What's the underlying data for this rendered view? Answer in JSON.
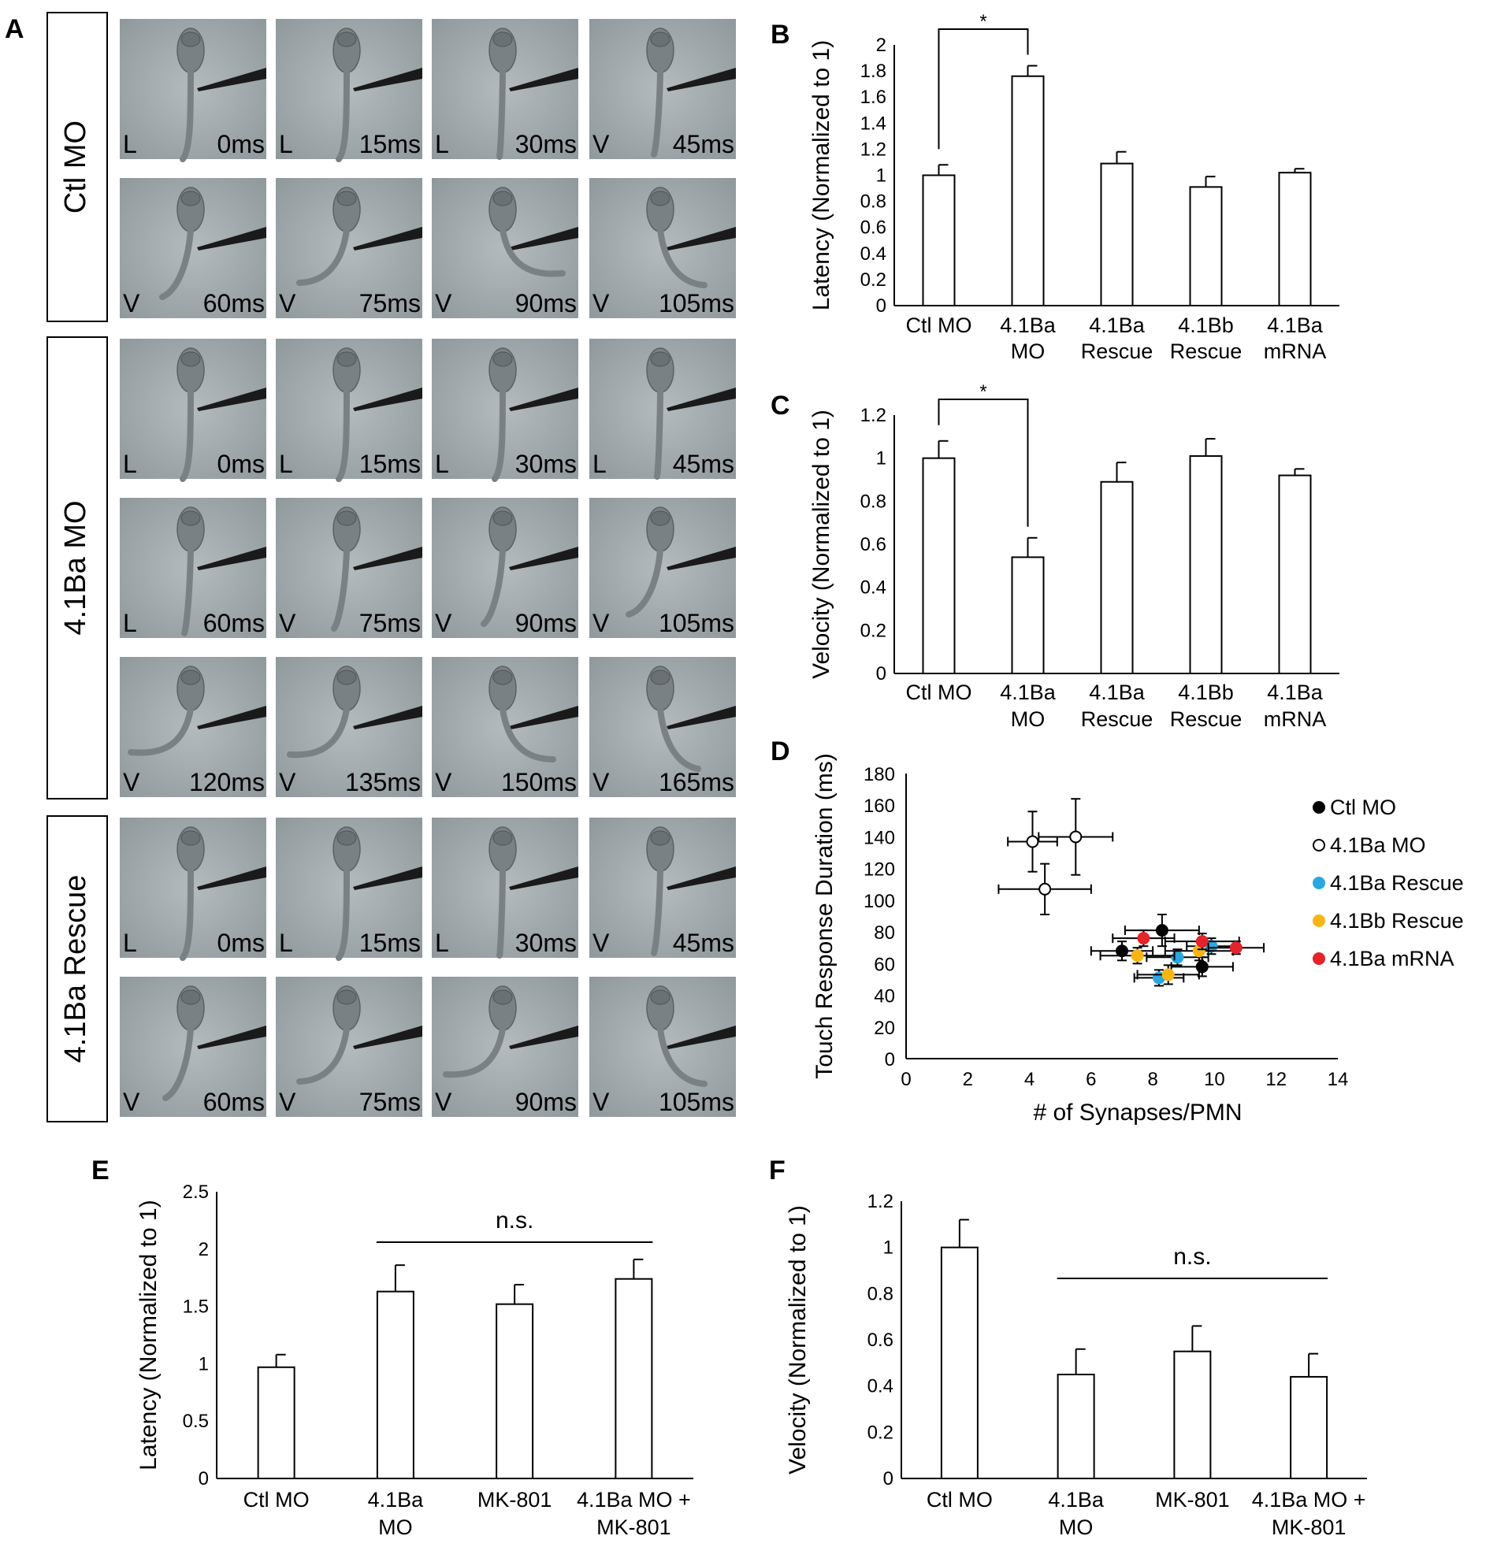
{
  "panel_a": {
    "label": "A",
    "groups": [
      {
        "label": "Ctl MO",
        "frames": [
          {
            "side": "L",
            "time": "0ms",
            "tail": 0.0
          },
          {
            "side": "L",
            "time": "15ms",
            "tail": 0.0
          },
          {
            "side": "L",
            "time": "30ms",
            "tail": 0.05
          },
          {
            "side": "V",
            "time": "45ms",
            "tail": 0.1
          },
          {
            "side": "V",
            "time": "60ms",
            "tail": 0.45
          },
          {
            "side": "V",
            "time": "75ms",
            "tail": 0.75
          },
          {
            "side": "V",
            "time": "90ms",
            "tail": -0.95
          },
          {
            "side": "V",
            "time": "105ms",
            "tail": -0.7
          }
        ]
      },
      {
        "label": "4.1Ba MO",
        "frames": [
          {
            "side": "L",
            "time": "0ms",
            "tail": 0.0
          },
          {
            "side": "L",
            "time": "15ms",
            "tail": 0.0
          },
          {
            "side": "L",
            "time": "30ms",
            "tail": 0.0
          },
          {
            "side": "L",
            "time": "45ms",
            "tail": 0.05
          },
          {
            "side": "L",
            "time": "60ms",
            "tail": 0.1
          },
          {
            "side": "V",
            "time": "75ms",
            "tail": 0.2
          },
          {
            "side": "V",
            "time": "90ms",
            "tail": 0.3
          },
          {
            "side": "V",
            "time": "105ms",
            "tail": 0.5
          },
          {
            "side": "V",
            "time": "120ms",
            "tail": 0.95
          },
          {
            "side": "V",
            "time": "135ms",
            "tail": 0.9
          },
          {
            "side": "V",
            "time": "150ms",
            "tail": -0.8
          },
          {
            "side": "V",
            "time": "165ms",
            "tail": -0.6
          }
        ]
      },
      {
        "label": "4.1Ba Rescue",
        "frames": [
          {
            "side": "L",
            "time": "0ms",
            "tail": 0.0
          },
          {
            "side": "L",
            "time": "15ms",
            "tail": 0.0
          },
          {
            "side": "L",
            "time": "30ms",
            "tail": 0.05
          },
          {
            "side": "V",
            "time": "45ms",
            "tail": 0.1
          },
          {
            "side": "V",
            "time": "60ms",
            "tail": 0.4
          },
          {
            "side": "V",
            "time": "75ms",
            "tail": 0.75
          },
          {
            "side": "V",
            "time": "90ms",
            "tail": 0.9
          },
          {
            "side": "V",
            "time": "105ms",
            "tail": -0.7
          }
        ]
      }
    ]
  },
  "colors": {
    "frame_bg": "#9aa3a6",
    "larva": "#7a8184",
    "probe": "#1a1a1a",
    "ctl_mo": "#000000",
    "ba_mo": "#ffffff",
    "ba_rescue": "#2aa7df",
    "bb_rescue": "#f7b515",
    "ba_mrna": "#e4232a"
  },
  "chart_data": [
    {
      "panel": "B",
      "type": "bar",
      "categories": [
        [
          "Ctl MO"
        ],
        [
          "4.1Ba",
          "MO"
        ],
        [
          "4.1Ba",
          "Rescue"
        ],
        [
          "4.1Bb",
          "Rescue"
        ],
        [
          "4.1Ba",
          "mRNA"
        ]
      ],
      "values": [
        1.0,
        1.76,
        1.09,
        0.91,
        1.02
      ],
      "errors": [
        0.08,
        0.08,
        0.09,
        0.08,
        0.03
      ],
      "ylabel": "Latency (Normalized to 1)",
      "ylim": [
        0,
        2
      ],
      "yticks": [
        "0",
        "0.2",
        "0.4",
        "0.6",
        "0.8",
        "1",
        "1.2",
        "1.4",
        "1.6",
        "1.8",
        "2"
      ],
      "annotation": {
        "text": "*",
        "from": 0,
        "to": 1
      }
    },
    {
      "panel": "C",
      "type": "bar",
      "categories": [
        [
          "Ctl MO"
        ],
        [
          "4.1Ba",
          "MO"
        ],
        [
          "4.1Ba",
          "Rescue"
        ],
        [
          "4.1Bb",
          "Rescue"
        ],
        [
          "4.1Ba",
          "mRNA"
        ]
      ],
      "values": [
        1.0,
        0.54,
        0.89,
        1.01,
        0.92
      ],
      "errors": [
        0.08,
        0.09,
        0.09,
        0.08,
        0.03
      ],
      "ylabel": "Velocity (Normalized to 1)",
      "ylim": [
        0,
        1.2
      ],
      "yticks": [
        "0",
        "0.2",
        "0.4",
        "0.6",
        "0.8",
        "1",
        "1.2"
      ],
      "annotation": {
        "text": "*",
        "from": 0,
        "to": 1
      }
    },
    {
      "panel": "D",
      "type": "scatter",
      "xlabel": "# of Synapses/PMN",
      "ylabel": "Touch Response Duration (ms)",
      "xlim": [
        0,
        14
      ],
      "ylim": [
        0,
        180
      ],
      "xticks": [
        "0",
        "2",
        "4",
        "6",
        "8",
        "10",
        "12",
        "14"
      ],
      "yticks": [
        "0",
        "20",
        "40",
        "60",
        "80",
        "100",
        "120",
        "140",
        "160",
        "180"
      ],
      "legend_position": "right",
      "series": [
        {
          "name": "Ctl MO",
          "color": "#000000",
          "fill": "#000000",
          "points": [
            {
              "x": 7.0,
              "y": 68,
              "xerr": 1.0,
              "yerr": 6
            },
            {
              "x": 8.3,
              "y": 81,
              "xerr": 1.2,
              "yerr": 10
            },
            {
              "x": 9.6,
              "y": 58,
              "xerr": 1.0,
              "yerr": 6
            }
          ]
        },
        {
          "name": "4.1Ba MO",
          "color": "#000000",
          "fill": "#ffffff",
          "points": [
            {
              "x": 4.1,
              "y": 137,
              "xerr": 0.8,
              "yerr": 19
            },
            {
              "x": 5.5,
              "y": 140,
              "xerr": 1.2,
              "yerr": 24
            },
            {
              "x": 4.5,
              "y": 107,
              "xerr": 1.5,
              "yerr": 16
            }
          ]
        },
        {
          "name": "4.1Ba Rescue",
          "color": "#2aa7df",
          "fill": "#2aa7df",
          "points": [
            {
              "x": 8.2,
              "y": 51,
              "xerr": 0.8,
              "yerr": 5
            },
            {
              "x": 8.8,
              "y": 64,
              "xerr": 1.0,
              "yerr": 5
            },
            {
              "x": 9.9,
              "y": 71,
              "xerr": 0.8,
              "yerr": 5
            }
          ]
        },
        {
          "name": "4.1Bb Rescue",
          "color": "#f7b515",
          "fill": "#f7b515",
          "points": [
            {
              "x": 7.5,
              "y": 65,
              "xerr": 1.2,
              "yerr": 5
            },
            {
              "x": 8.5,
              "y": 53,
              "xerr": 1.0,
              "yerr": 6
            },
            {
              "x": 9.5,
              "y": 68,
              "xerr": 1.1,
              "yerr": 6
            }
          ]
        },
        {
          "name": "4.1Ba mRNA",
          "color": "#e4232a",
          "fill": "#e4232a",
          "points": [
            {
              "x": 7.7,
              "y": 76,
              "xerr": 1.0,
              "yerr": 5
            },
            {
              "x": 9.6,
              "y": 74,
              "xerr": 1.2,
              "yerr": 5
            },
            {
              "x": 10.7,
              "y": 70,
              "xerr": 0.9,
              "yerr": 4
            }
          ]
        }
      ]
    },
    {
      "panel": "E",
      "type": "bar",
      "categories": [
        [
          "Ctl MO"
        ],
        [
          "4.1Ba",
          "MO"
        ],
        [
          "MK-801"
        ],
        [
          "4.1Ba MO +",
          "MK-801"
        ]
      ],
      "values": [
        0.97,
        1.63,
        1.52,
        1.74
      ],
      "errors": [
        0.11,
        0.23,
        0.17,
        0.17
      ],
      "ylabel": "Latency (Normalized to 1)",
      "ylim": [
        0,
        2.5
      ],
      "yticks": [
        "0",
        "0.5",
        "1",
        "1.5",
        "2",
        "2.5"
      ],
      "annotation": {
        "text": "n.s.",
        "from": 1,
        "to": 3
      }
    },
    {
      "panel": "F",
      "type": "bar",
      "categories": [
        [
          "Ctl MO"
        ],
        [
          "4.1Ba",
          "MO"
        ],
        [
          "MK-801"
        ],
        [
          "4.1Ba MO +",
          "MK-801"
        ]
      ],
      "values": [
        1.0,
        0.45,
        0.55,
        0.44
      ],
      "errors": [
        0.12,
        0.11,
        0.11,
        0.1
      ],
      "ylabel": "Velocity (Normalized to 1)",
      "ylim": [
        0,
        1.2
      ],
      "yticks": [
        "0",
        "0.2",
        "0.4",
        "0.6",
        "0.8",
        "1",
        "1.2"
      ],
      "annotation": {
        "text": "n.s.",
        "from": 1,
        "to": 3
      }
    }
  ]
}
